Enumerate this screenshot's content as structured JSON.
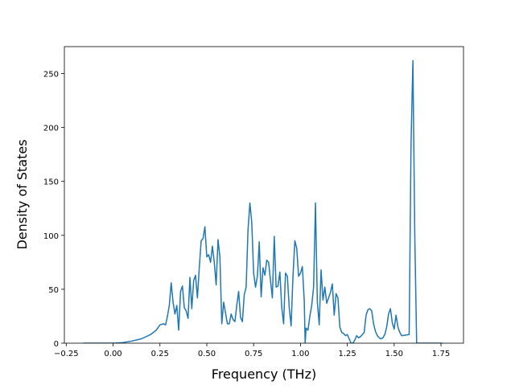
{
  "chart_data": {
    "type": "line",
    "xlabel": "Frequency (THz)",
    "ylabel": "Density of States",
    "color": "#1f77b4",
    "x": [
      -0.16,
      0.0,
      0.05,
      0.1,
      0.15,
      0.2,
      0.23,
      0.25,
      0.27,
      0.28,
      0.29,
      0.3,
      0.31,
      0.32,
      0.33,
      0.34,
      0.35,
      0.36,
      0.37,
      0.38,
      0.39,
      0.4,
      0.41,
      0.42,
      0.43,
      0.44,
      0.45,
      0.46,
      0.47,
      0.48,
      0.49,
      0.5,
      0.51,
      0.52,
      0.53,
      0.54,
      0.55,
      0.56,
      0.57,
      0.58,
      0.59,
      0.6,
      0.61,
      0.62,
      0.63,
      0.64,
      0.65,
      0.66,
      0.67,
      0.68,
      0.69,
      0.7,
      0.71,
      0.72,
      0.73,
      0.74,
      0.75,
      0.76,
      0.77,
      0.78,
      0.79,
      0.8,
      0.81,
      0.82,
      0.83,
      0.84,
      0.85,
      0.86,
      0.87,
      0.88,
      0.89,
      0.9,
      0.91,
      0.92,
      0.93,
      0.94,
      0.95,
      0.96,
      0.97,
      0.98,
      0.99,
      1.0,
      1.01,
      1.02,
      1.025,
      1.03,
      1.04,
      1.05,
      1.06,
      1.07,
      1.08,
      1.09,
      1.1,
      1.11,
      1.12,
      1.13,
      1.14,
      1.15,
      1.16,
      1.17,
      1.18,
      1.19,
      1.2,
      1.21,
      1.22,
      1.23,
      1.24,
      1.25,
      1.26,
      1.27,
      1.28,
      1.29,
      1.3,
      1.31,
      1.32,
      1.33,
      1.34,
      1.35,
      1.36,
      1.37,
      1.38,
      1.39,
      1.4,
      1.41,
      1.42,
      1.43,
      1.44,
      1.45,
      1.46,
      1.47,
      1.48,
      1.49,
      1.5,
      1.51,
      1.52,
      1.53,
      1.54,
      1.58,
      1.59,
      1.6,
      1.61,
      1.62,
      1.76
    ],
    "values": [
      0,
      0,
      0.5,
      2,
      4,
      8,
      12,
      17,
      18,
      17,
      25,
      35,
      56,
      38,
      27,
      35,
      12,
      48,
      53,
      33,
      30,
      23,
      61,
      32,
      58,
      63,
      42,
      70,
      95,
      97,
      108,
      80,
      82,
      75,
      90,
      75,
      54,
      96,
      80,
      18,
      38,
      28,
      18,
      18,
      27,
      22,
      20,
      35,
      48,
      24,
      20,
      45,
      52,
      105,
      130,
      112,
      65,
      52,
      62,
      94,
      43,
      70,
      63,
      77,
      75,
      58,
      42,
      99,
      52,
      53,
      66,
      33,
      18,
      65,
      62,
      33,
      16,
      62,
      95,
      88,
      62,
      65,
      71,
      40,
      0,
      14,
      12,
      25,
      35,
      52,
      130,
      38,
      17,
      68,
      40,
      52,
      37,
      42,
      47,
      55,
      26,
      46,
      42,
      15,
      10,
      9,
      7,
      8,
      4,
      0,
      0,
      3,
      7,
      5,
      6,
      8,
      10,
      26,
      31,
      32,
      30,
      18,
      11,
      7,
      5,
      4,
      5,
      8,
      15,
      27,
      32,
      19,
      13,
      26,
      15,
      10,
      7,
      8,
      185,
      262,
      100,
      0,
      0
    ],
    "xlim": [
      -0.26,
      1.87
    ],
    "ylim": [
      0,
      275
    ],
    "xticks": [
      {
        "value": -0.25,
        "label": "−0.25"
      },
      {
        "value": 0,
        "label": "0.00"
      },
      0.25,
      {
        "value": 0.5,
        "label": "0.50"
      },
      0.75,
      {
        "value": 1,
        "label": "1.00"
      },
      1.25,
      {
        "value": 1.5,
        "label": "1.50"
      },
      1.75
    ],
    "yticks": [
      0,
      50,
      100,
      150,
      200,
      250
    ]
  }
}
